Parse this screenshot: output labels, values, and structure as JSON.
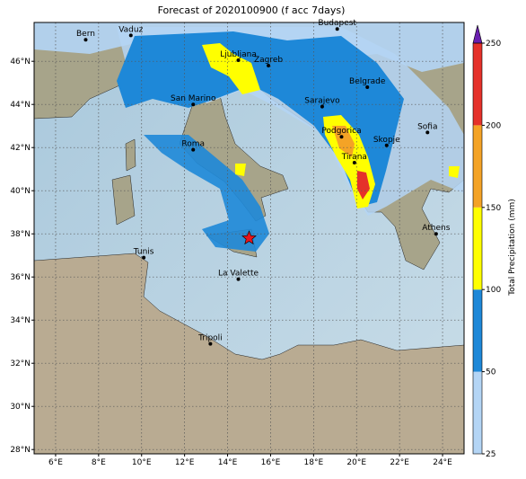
{
  "title": "Forecast of 2020100900 (f acc 7days)",
  "map": {
    "xlim": [
      5,
      25
    ],
    "ylim": [
      27.8,
      47.8
    ],
    "xticks": [
      {
        "value": 6,
        "label": "6°E"
      },
      {
        "value": 8,
        "label": "8°E"
      },
      {
        "value": 10,
        "label": "10°E"
      },
      {
        "value": 12,
        "label": "12°E"
      },
      {
        "value": 14,
        "label": "14°E"
      },
      {
        "value": 16,
        "label": "16°E"
      },
      {
        "value": 18,
        "label": "18°E"
      },
      {
        "value": 20,
        "label": "20°E"
      },
      {
        "value": 22,
        "label": "22°E"
      },
      {
        "value": 24,
        "label": "24°E"
      }
    ],
    "yticks": [
      {
        "value": 28,
        "label": "28°N"
      },
      {
        "value": 30,
        "label": "30°N"
      },
      {
        "value": 32,
        "label": "32°N"
      },
      {
        "value": 34,
        "label": "34°N"
      },
      {
        "value": 36,
        "label": "36°N"
      },
      {
        "value": 38,
        "label": "38°N"
      },
      {
        "value": 40,
        "label": "40°N"
      },
      {
        "value": 42,
        "label": "42°N"
      },
      {
        "value": 44,
        "label": "44°N"
      },
      {
        "value": 46,
        "label": "46°N"
      }
    ],
    "grid": true,
    "cities": [
      {
        "name": "Bern",
        "lon": 7.4,
        "lat": 47.0
      },
      {
        "name": "Vaduz",
        "lon": 9.5,
        "lat": 47.2
      },
      {
        "name": "Budapest",
        "lon": 19.1,
        "lat": 47.5
      },
      {
        "name": "Ljubljana",
        "lon": 14.5,
        "lat": 46.05
      },
      {
        "name": "Zagreb",
        "lon": 15.9,
        "lat": 45.8
      },
      {
        "name": "San Marino",
        "lon": 12.4,
        "lat": 44.0
      },
      {
        "name": "Belgrade",
        "lon": 20.5,
        "lat": 44.8
      },
      {
        "name": "Sarajevo",
        "lon": 18.4,
        "lat": 43.9
      },
      {
        "name": "Podgorica",
        "lon": 19.3,
        "lat": 42.5
      },
      {
        "name": "Sofia",
        "lon": 23.3,
        "lat": 42.7
      },
      {
        "name": "Skopje",
        "lon": 21.4,
        "lat": 42.1
      },
      {
        "name": "Tirana",
        "lon": 19.9,
        "lat": 41.3
      },
      {
        "name": "Roma",
        "lon": 12.4,
        "lat": 41.9
      },
      {
        "name": "Athens",
        "lon": 23.7,
        "lat": 38.0
      },
      {
        "name": "Tunis",
        "lon": 10.1,
        "lat": 36.9
      },
      {
        "name": "La Valette",
        "lon": 14.5,
        "lat": 35.9
      },
      {
        "name": "Tripoli",
        "lon": 13.2,
        "lat": 32.9
      }
    ],
    "marker": {
      "lon": 15.0,
      "lat": 37.8,
      "color": "#e8141c"
    }
  },
  "colorbar": {
    "label": "Total Precipitation (mm)",
    "ticks": [
      25,
      50,
      100,
      150,
      200,
      250
    ],
    "colors": [
      "#b4d5f5",
      "#1e88d8",
      "#ffff00",
      "#f4a326",
      "#e5312a"
    ],
    "extend_color": "#6a1fb0"
  }
}
